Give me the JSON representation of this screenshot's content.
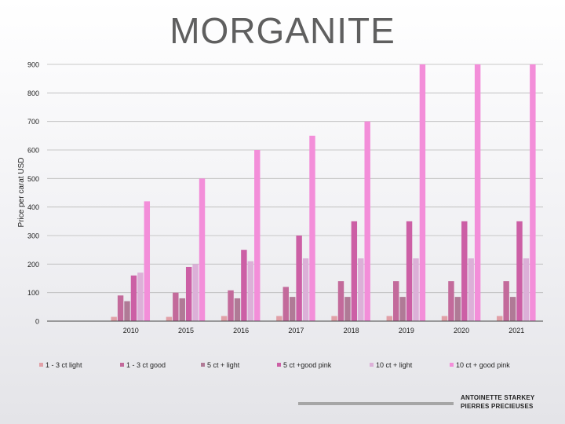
{
  "title": "MORGANITE",
  "footer": {
    "line1": "ANTOINETTE STARKEY",
    "line2": "PIERRES PRECIEUSES"
  },
  "chart_data": {
    "type": "bar",
    "title": "MORGANITE",
    "xlabel": "",
    "ylabel": "Price per carat USD",
    "ylim": [
      0,
      900
    ],
    "yticks": [
      0,
      100,
      200,
      300,
      400,
      500,
      600,
      700,
      800,
      900
    ],
    "grid": true,
    "legend_position": "bottom",
    "categories": [
      "",
      "2010",
      "2015",
      "2016",
      "2017",
      "2018",
      "2019",
      "2020",
      "2021"
    ],
    "series": [
      {
        "name": "1 - 3 ct light",
        "color": "#e1a0a7",
        "values": [
          null,
          15,
          15,
          18,
          18,
          18,
          18,
          18,
          18
        ]
      },
      {
        "name": "1 - 3 ct good",
        "color": "#c36a9b",
        "values": [
          null,
          90,
          100,
          108,
          120,
          140,
          140,
          140,
          140
        ]
      },
      {
        "name": "5 ct + light",
        "color": "#b07a96",
        "values": [
          null,
          70,
          80,
          80,
          85,
          85,
          85,
          85,
          85
        ]
      },
      {
        "name": "5 ct +good pink",
        "color": "#cc5fa5",
        "values": [
          null,
          160,
          190,
          250,
          300,
          350,
          350,
          350,
          350
        ]
      },
      {
        "name": "10 ct + light",
        "color": "#dcb0d8",
        "values": [
          null,
          170,
          200,
          210,
          220,
          220,
          220,
          220,
          220
        ]
      },
      {
        "name": "10 ct + good pink",
        "color": "#f38ed9",
        "values": [
          null,
          420,
          500,
          600,
          650,
          700,
          900,
          900,
          900
        ]
      }
    ]
  }
}
